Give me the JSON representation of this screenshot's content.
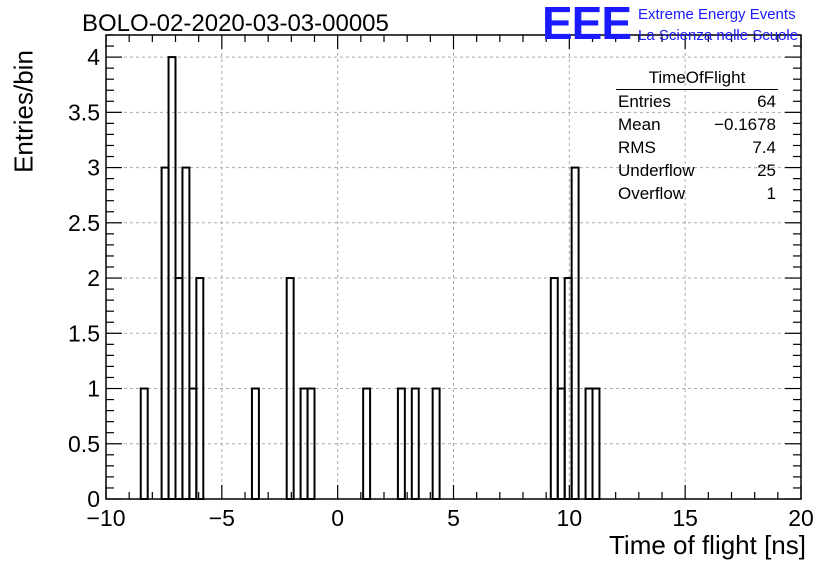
{
  "title": "BOLO-02-2020-03-03-00005",
  "logo": {
    "mark": "EEE",
    "line1": "Extreme Energy Events",
    "line2": "La Scienza nelle Scuole",
    "color": "#1a1aff"
  },
  "stats": {
    "title": "TimeOfFlight",
    "rows": [
      {
        "label": "Entries",
        "value": "64"
      },
      {
        "label": "Mean",
        "value": "−0.1678"
      },
      {
        "label": "RMS",
        "value": "7.4"
      },
      {
        "label": "Underflow",
        "value": "25"
      },
      {
        "label": "Overflow",
        "value": "1"
      }
    ]
  },
  "chart_data": {
    "type": "bar",
    "histogram": true,
    "title": "BOLO-02-2020-03-03-00005",
    "xlabel": "Time of flight [ns]",
    "ylabel": "Entries/bin",
    "xlim": [
      -10,
      20
    ],
    "ylim": [
      0,
      4.2
    ],
    "grid": true,
    "bin_width": 0.3,
    "x": [
      -8.5,
      -8.2,
      -7.9,
      -7.6,
      -7.3,
      -7.0,
      -6.7,
      -6.4,
      -6.1,
      -5.8,
      -5.5,
      -5.2,
      -4.9,
      -4.6,
      -4.3,
      -4.0,
      -3.7,
      -3.4,
      -3.1,
      -2.8,
      -2.5,
      -2.2,
      -1.9,
      -1.6,
      -1.3,
      -1.0,
      -0.7,
      -0.4,
      -0.1,
      0.2,
      0.5,
      0.8,
      1.1,
      1.4,
      1.7,
      2.0,
      2.3,
      2.6,
      2.9,
      3.2,
      3.5,
      3.8,
      4.1,
      4.4,
      4.7,
      5.0,
      5.3,
      5.6,
      5.9,
      6.2,
      6.5,
      6.8,
      7.1,
      7.4,
      7.7,
      8.0,
      8.3,
      8.6,
      8.9,
      9.2,
      9.5,
      9.8,
      10.1,
      10.4,
      10.7,
      11.0,
      11.3
    ],
    "values": [
      1,
      0,
      0,
      3,
      4,
      2,
      3,
      1,
      2,
      0,
      0,
      0,
      0,
      0,
      0,
      0,
      1,
      0,
      0,
      0,
      0,
      2,
      0,
      1,
      1,
      0,
      0,
      0,
      0,
      0,
      0,
      0,
      1,
      0,
      0,
      0,
      0,
      1,
      0,
      1,
      0,
      0,
      1,
      0,
      0,
      0,
      0,
      0,
      0,
      0,
      0,
      0,
      0,
      0,
      0,
      0,
      0,
      0,
      0,
      2,
      1,
      2,
      3,
      0,
      1,
      1,
      0
    ],
    "xticks": [
      "−10",
      "−5",
      "0",
      "5",
      "10",
      "15",
      "20"
    ],
    "yticks": [
      "0",
      "0.5",
      "1",
      "1.5",
      "2",
      "2.5",
      "3",
      "3.5",
      "4"
    ]
  }
}
